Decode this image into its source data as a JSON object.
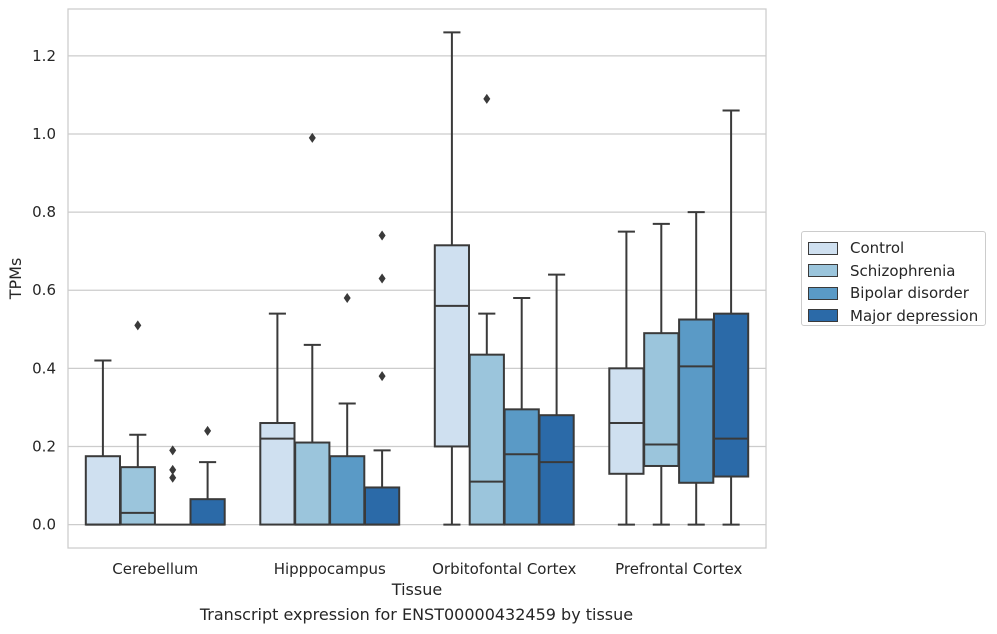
{
  "caption": "Transcript expression for ENST00000432459 by tissue",
  "chart_data": {
    "type": "boxplot",
    "xlabel": "Tissue",
    "ylabel": "TPMs",
    "ylim": [
      -0.06,
      1.32
    ],
    "yticks": [
      "0.0",
      "0.2",
      "0.4",
      "0.6",
      "0.8",
      "1.0",
      "1.2"
    ],
    "ytick_values": [
      0,
      0.2,
      0.4,
      0.6,
      0.8,
      1.0,
      1.2
    ],
    "grid": "horizontal",
    "legend_position": "right",
    "categories": [
      "Cerebellum",
      "Hipppocampus",
      "Orbitofontal Cortex",
      "Prefrontal Cortex"
    ],
    "series": [
      {
        "name": "Control",
        "color": "#cfe0f0",
        "boxes": [
          {
            "whislo": 0.0,
            "q1": 0.0,
            "med": 0.0,
            "q3": 0.175,
            "whishi": 0.42,
            "fliers": []
          },
          {
            "whislo": 0.0,
            "q1": 0.0,
            "med": 0.22,
            "q3": 0.26,
            "whishi": 0.54,
            "fliers": []
          },
          {
            "whislo": 0.0,
            "q1": 0.2,
            "med": 0.56,
            "q3": 0.715,
            "whishi": 1.26,
            "fliers": []
          },
          {
            "whislo": 0.0,
            "q1": 0.13,
            "med": 0.26,
            "q3": 0.4,
            "whishi": 0.75,
            "fliers": []
          }
        ]
      },
      {
        "name": "Schizophrenia",
        "color": "#9bc5dc",
        "boxes": [
          {
            "whislo": 0.0,
            "q1": 0.0,
            "med": 0.03,
            "q3": 0.147,
            "whishi": 0.23,
            "fliers": [
              0.51
            ]
          },
          {
            "whislo": 0.0,
            "q1": 0.0,
            "med": 0.0,
            "q3": 0.21,
            "whishi": 0.46,
            "fliers": [
              0.99
            ]
          },
          {
            "whislo": 0.0,
            "q1": 0.0,
            "med": 0.11,
            "q3": 0.435,
            "whishi": 0.54,
            "fliers": [
              1.09
            ]
          },
          {
            "whislo": 0.0,
            "q1": 0.15,
            "med": 0.205,
            "q3": 0.49,
            "whishi": 0.77,
            "fliers": []
          }
        ]
      },
      {
        "name": "Bipolar disorder",
        "color": "#5a9ac6",
        "boxes": [
          {
            "whislo": 0.0,
            "q1": 0.0,
            "med": 0.0,
            "q3": 0.0,
            "whishi": 0.0,
            "fliers": [
              0.12,
              0.14,
              0.19
            ]
          },
          {
            "whislo": 0.0,
            "q1": 0.0,
            "med": 0.0,
            "q3": 0.175,
            "whishi": 0.31,
            "fliers": [
              0.58
            ]
          },
          {
            "whislo": 0.0,
            "q1": 0.0,
            "med": 0.18,
            "q3": 0.295,
            "whishi": 0.58,
            "fliers": []
          },
          {
            "whislo": 0.0,
            "q1": 0.107,
            "med": 0.405,
            "q3": 0.525,
            "whishi": 0.8,
            "fliers": []
          }
        ]
      },
      {
        "name": "Major depression",
        "color": "#2b6aa8",
        "boxes": [
          {
            "whislo": 0.0,
            "q1": 0.0,
            "med": 0.0,
            "q3": 0.065,
            "whishi": 0.16,
            "fliers": [
              0.24
            ]
          },
          {
            "whislo": 0.0,
            "q1": 0.0,
            "med": 0.0,
            "q3": 0.095,
            "whishi": 0.19,
            "fliers": [
              0.38,
              0.63,
              0.74
            ]
          },
          {
            "whislo": 0.0,
            "q1": 0.0,
            "med": 0.16,
            "q3": 0.28,
            "whishi": 0.64,
            "fliers": []
          },
          {
            "whislo": 0.0,
            "q1": 0.123,
            "med": 0.22,
            "q3": 0.54,
            "whishi": 1.06,
            "fliers": []
          }
        ]
      }
    ]
  }
}
